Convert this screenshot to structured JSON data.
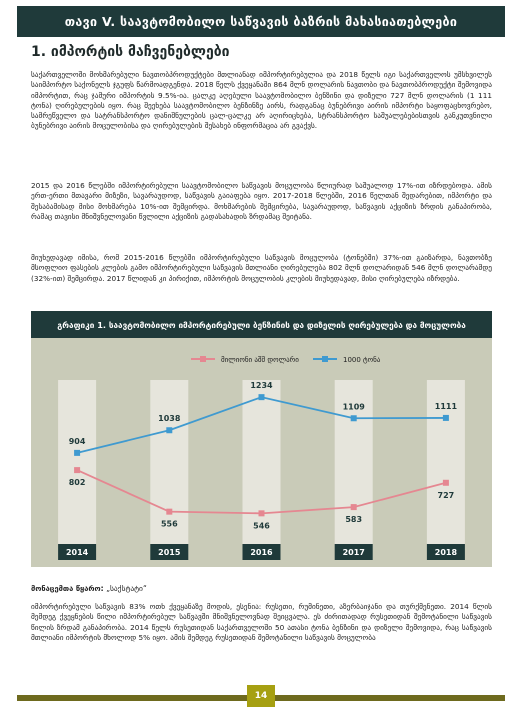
{
  "header": {
    "title": "თავი V. საავტომობილო საწვავის ბაზრის მახასიათებლები"
  },
  "section": {
    "title": "1. იმპორტის მაჩვენებლები"
  },
  "paragraphs": [
    "საქართველოში მოხმარებული ნავთობპროდუქტები მთლიანად იმპორტირებულია და 2018 წელს იგი საქართველოს უმსხვილეს საიმპორტო საქონელს ჯგუფს წარმოადგენდა. 2018 წელს ქვეყანაში 864 მლნ დოლარის ნავთობი და ნავთობპროდუქტი შემოვიდა იმპორტით, რაც ჯამური იმპორტის 9.5%-ია. ცალკე აღებული საავტომობილო ბენზინი და დიზელი 727 მლნ დოლარის (1 111 ტონა) ღირებულების იყო. რაც შეეხება საავტომობილო ბენზინზე აირს, რადგანაც ბუნებრივი აირის იმპორტი საყოფაცხოვრებო, სამრეწველო და სატრანსპორტო დანიშნულების ცალ-ცალკე არ აღირიცხება, სტრანსპორტო საშუალებებისთვის განკუთვნილი ბუნებრივი აირის მოცულობისა და ღირებულების შესახებ ინფორმაცია არ გვაქვს.",
    "2015 და 2016 წლებში იმპორტირებული საავტომობილო საწვავის მოცულობა წლიურად საშუალოდ 17%-ით იზრდებოდა. ამის ერთ-ერთი მთავარი მიზეზი, სავარაუდოდ, საწვავის გაიაფება იყო. 2017-2018 წლებში, 2016 წელთან შედარებით, იმპორტი და შესაბამისად მისი მოხმარება 10%-ით შემცირდა. მოხმარების შემცირება, სავარაუდოდ, საწვავის აქციზის ზრდის განაპირობა, რამაც თავისი მნიშვნელოვანი წვლილი აქციზის გადასახადის ზრდამაც შეიტანა.",
    "მიუხედავად იმისა, რომ 2015-2016 წლებში იმპორტირებული საწვავის მოცულობა (ტონებში) 37%-ით გაიზარდა, ნავთობზე მსოფლიო ფასების კლების გამო იმპორტირებული საწვავის მთლიანი ღირებულება 802 მლნ დოლარიდან 546 მლნ დოლარამდე (32%-ით) შემცირდა. 2017 წლიდან კი პირიქით, იმპორტის მოცულობის კლების მიუხედავად, მისი ღირებულება იზრდება."
  ],
  "chart_data": {
    "type": "line",
    "title": "გრაფიკი 1. საავტომობილო იმპორტირებული ბენზინის და დიზელის ღირებულება და მოცულობა",
    "categories": [
      "2014",
      "2015",
      "2016",
      "2017",
      "2018"
    ],
    "series": [
      {
        "name": "მილიონი აშშ დოლარი",
        "values": [
          802,
          556,
          546,
          583,
          727
        ],
        "color": "#e58791"
      },
      {
        "name": "1000 ტონა",
        "values": [
          904,
          1038,
          1234,
          1109,
          1111
        ],
        "color": "#3f9ad0"
      }
    ],
    "ylim": [
      400,
      1300
    ],
    "legend": "top",
    "bar_color": "#e6e5dc",
    "background": "#c9cbb8",
    "year_label_bg": "#1f3a3a"
  },
  "source": {
    "label": "მონაცემთა წყარო:",
    "value": "„საქსტატი“"
  },
  "bottom_paragraph": "იმპორტირებული საწვავის 83% ოთხ ქვეყანაზე მოდის, ესენია: რუსეთი, რუმინეთი, აზერბაიჯანი და თურქმენეთი. 2014 წლის მემდეგ ქვეყნების წილი იმპორტირებულ საწვავში მნიშვნელოვნად შეიცვალა. ეს ძირითადად რუსეთიდან შემოტანილი საწვავის წილის ზრდამ განაპირობა. 2014 წელს რუსეთიდან საქართველოში 50 ათასი ტონა ბენზინი და დიზელი შემოვიდა, რაც საწვავის მთლიანი იმპორტის მხოლოდ 5% იყო. ამის შემდეგ რუსეთიდან შემოტანილი საწვავის მოცულობა",
  "footer": {
    "page_number": "14"
  },
  "colors": {
    "header_bg": "#1f3a3a",
    "footer_bar": "#6e6a1e",
    "page_badge": "#a6a012"
  }
}
